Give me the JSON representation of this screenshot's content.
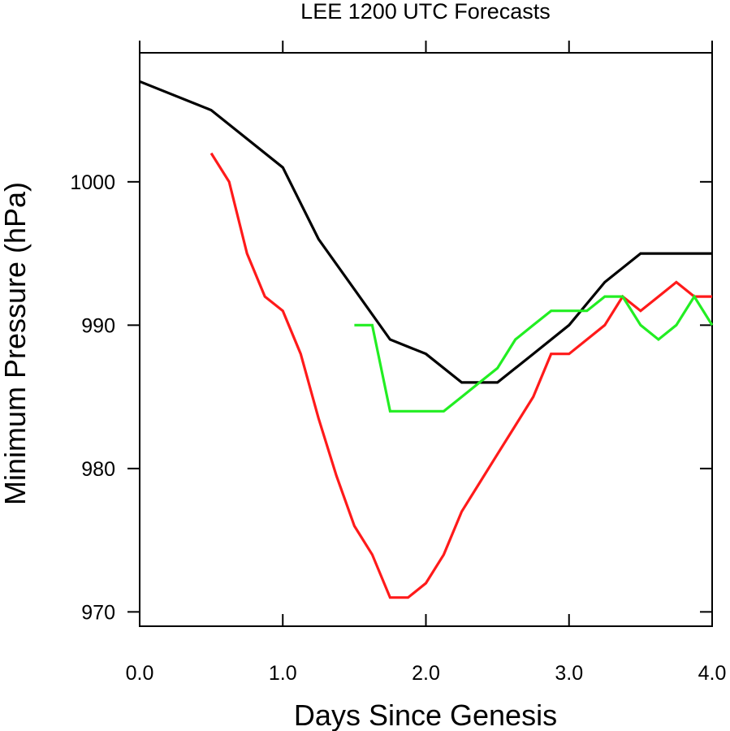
{
  "chart_data": {
    "type": "line",
    "title": "LEE 1200 UTC Forecasts",
    "xlabel": "Days Since Genesis",
    "ylabel": "Minimum Pressure (hPa)",
    "xlim": [
      0.0,
      4.0
    ],
    "ylim": [
      969,
      1009
    ],
    "x_ticks": [
      0.0,
      1.0,
      2.0,
      3.0,
      4.0
    ],
    "x_tick_labels": [
      "0.0",
      "1.0",
      "2.0",
      "3.0",
      "4.0"
    ],
    "y_ticks": [
      970,
      980,
      990,
      1000
    ],
    "y_tick_labels": [
      "970",
      "980",
      "990",
      "1000"
    ],
    "grid": false,
    "legend": "none",
    "series": [
      {
        "color": "#000000",
        "x": [
          0.0,
          0.5,
          1.0,
          1.25,
          1.5,
          1.75,
          2.0,
          2.25,
          2.5,
          2.75,
          3.0,
          3.25,
          3.5,
          3.75,
          4.0
        ],
        "y": [
          1007,
          1005,
          1001,
          996,
          992.5,
          989,
          988,
          986,
          986,
          988,
          990,
          993,
          995,
          995,
          995
        ]
      },
      {
        "color": "#ff1a1a",
        "x": [
          0.5,
          0.625,
          0.75,
          0.875,
          1.0,
          1.125,
          1.25,
          1.375,
          1.5,
          1.625,
          1.75,
          1.875,
          2.0,
          2.125,
          2.25,
          2.375,
          2.5,
          2.625,
          2.75,
          2.875,
          3.0,
          3.125,
          3.25,
          3.375,
          3.5,
          3.625,
          3.75,
          3.875,
          4.0
        ],
        "y": [
          1002,
          1000,
          995,
          992,
          991,
          988,
          983.5,
          979.5,
          976,
          974,
          971,
          971,
          972,
          974,
          977,
          979,
          981,
          983,
          985,
          988,
          988,
          989,
          990,
          992,
          991,
          992,
          993,
          992,
          992
        ]
      },
      {
        "color": "#22ee22",
        "x": [
          1.5,
          1.625,
          1.75,
          1.875,
          2.0,
          2.125,
          2.25,
          2.375,
          2.5,
          2.625,
          2.75,
          2.875,
          3.0,
          3.125,
          3.25,
          3.375,
          3.5,
          3.625,
          3.75,
          3.875,
          4.0
        ],
        "y": [
          990,
          990,
          984,
          984,
          984,
          984,
          985,
          986,
          987,
          989,
          990,
          991,
          991,
          991,
          992,
          992,
          990,
          989,
          990,
          992,
          990
        ]
      }
    ]
  }
}
